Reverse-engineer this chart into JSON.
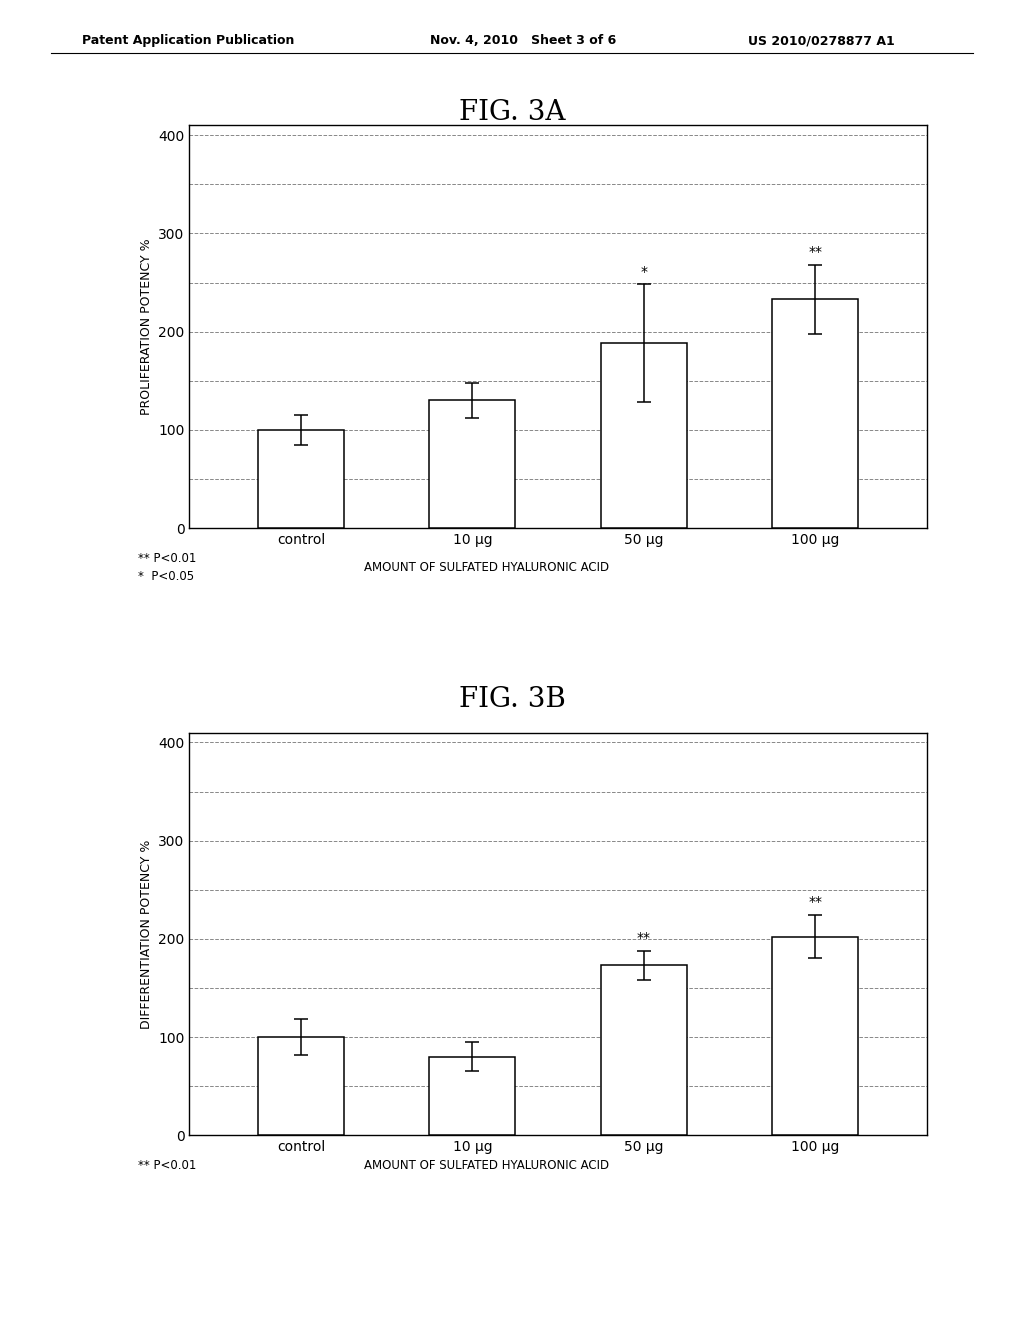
{
  "fig3a": {
    "title": "FIG. 3A",
    "ylabel": "PROLIFERATION POTENCY %",
    "categories": [
      "control",
      "10 μg",
      "50 μg",
      "100 μg"
    ],
    "values": [
      100,
      130,
      188,
      233
    ],
    "errors": [
      15,
      18,
      60,
      35
    ],
    "significance": [
      "",
      "",
      "*",
      "**"
    ],
    "ylim": [
      0,
      410
    ],
    "yticks": [
      0,
      100,
      200,
      300,
      400
    ],
    "grid_y": [
      50,
      100,
      150,
      200,
      250,
      300,
      350,
      400
    ],
    "xlabel_note1": "** P<0.01",
    "xlabel_note2": "*  P<0.05",
    "xlabel_main": "AMOUNT OF SULFATED HYALURONIC ACID"
  },
  "fig3b": {
    "title": "FIG. 3B",
    "ylabel": "DIFFERENTIATION POTENCY %",
    "categories": [
      "control",
      "10 μg",
      "50 μg",
      "100 μg"
    ],
    "values": [
      100,
      80,
      173,
      202
    ],
    "errors": [
      18,
      15,
      15,
      22
    ],
    "significance": [
      "",
      "",
      "**",
      "**"
    ],
    "ylim": [
      0,
      410
    ],
    "yticks": [
      0,
      100,
      200,
      300,
      400
    ],
    "grid_y": [
      50,
      100,
      150,
      200,
      250,
      300,
      350,
      400
    ],
    "xlabel_note1": "** P<0.01",
    "xlabel_main": "AMOUNT OF SULFATED HYALURONIC ACID"
  },
  "background_color": "#ffffff",
  "bar_color": "#ffffff",
  "bar_edge_color": "#000000",
  "header_left": "Patent Application Publication",
  "header_mid": "Nov. 4, 2010   Sheet 3 of 6",
  "header_right": "US 2010/0278877 A1"
}
